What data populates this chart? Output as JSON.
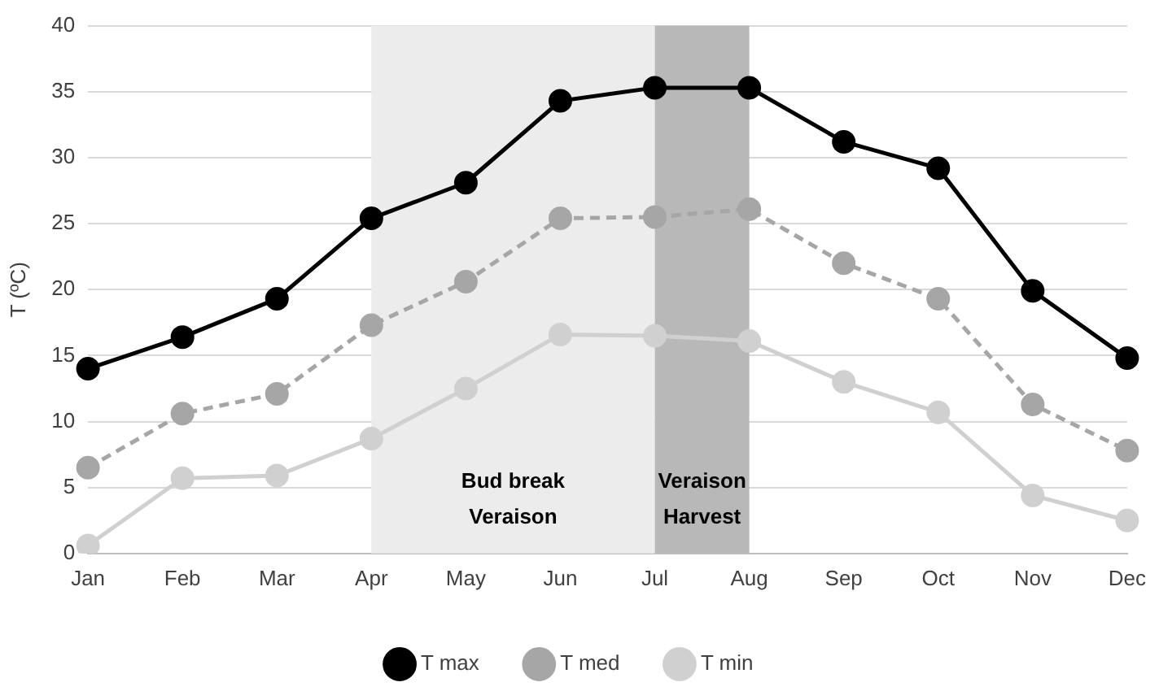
{
  "chart_data": {
    "type": "line",
    "ylabel": "T (ºC)",
    "categories": [
      "Jan",
      "Feb",
      "Mar",
      "Apr",
      "May",
      "Jun",
      "Jul",
      "Aug",
      "Sep",
      "Oct",
      "Nov",
      "Dec"
    ],
    "series": [
      {
        "name": "T max",
        "color": "#000000",
        "values": [
          14,
          16.4,
          19.3,
          25.4,
          28.1,
          34.3,
          35.3,
          35.3,
          31.2,
          29.2,
          19.9,
          14.8
        ]
      },
      {
        "name": "T med",
        "color": "#a6a6a6",
        "line_style": "dashed",
        "values": [
          6.5,
          10.6,
          12.1,
          17.3,
          20.6,
          25.4,
          25.5,
          26.1,
          22,
          19.3,
          11.3,
          7.8
        ]
      },
      {
        "name": "T min",
        "color": "#d0d0d0",
        "values": [
          0.6,
          5.7,
          5.9,
          8.7,
          12.5,
          16.6,
          16.5,
          16.1,
          13,
          10.7,
          4.4,
          2.5
        ]
      }
    ],
    "bands": [
      {
        "axis": "x",
        "from": "Apr",
        "to": "Jul",
        "label": "Bud break\nVeraison",
        "color": "#ececec"
      },
      {
        "axis": "x",
        "from": "Jul",
        "to": "Aug",
        "label": "Veraison\nHarvest",
        "color": "#b8b8b8"
      }
    ],
    "ylim": [
      0,
      40
    ],
    "yticks": [
      0,
      5,
      10,
      15,
      20,
      25,
      30,
      35,
      40
    ],
    "grid": "y",
    "legend": "bottom",
    "marker": "circle",
    "line_style": "solid"
  }
}
